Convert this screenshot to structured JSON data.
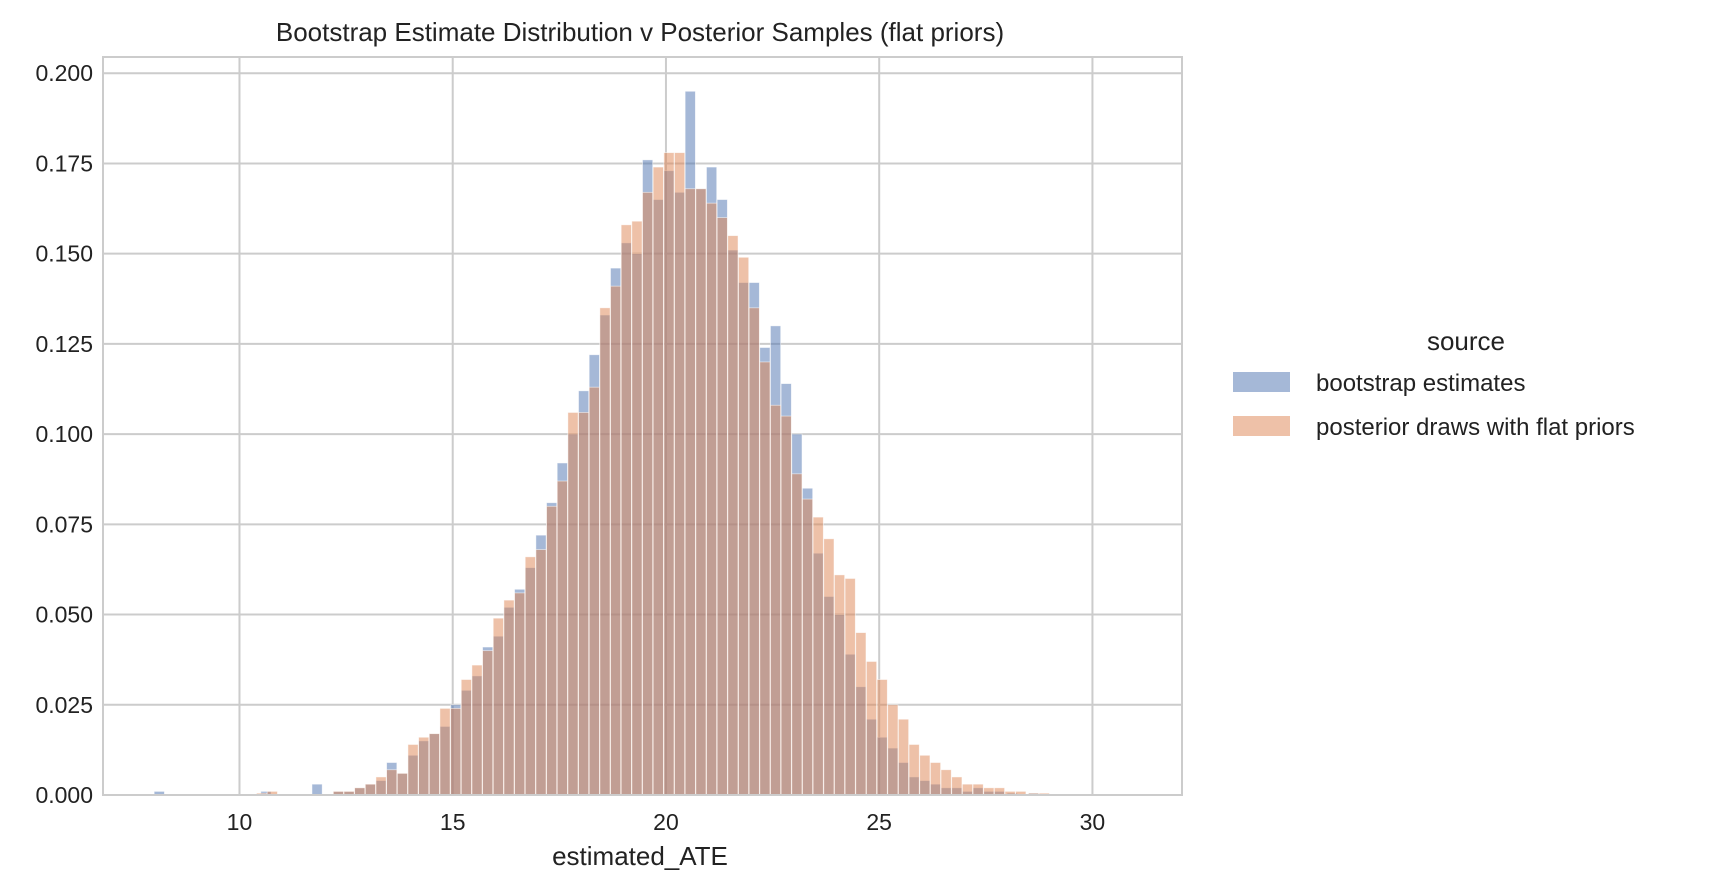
{
  "chart_data": {
    "type": "histogram",
    "title": "Bootstrap Estimate Distribution v Posterior Samples (flat priors)",
    "xlabel": "estimated_ATE",
    "ylabel": "",
    "xlim": [
      6.8,
      32.1
    ],
    "ylim": [
      0,
      0.2045
    ],
    "xticks": [
      10,
      15,
      20,
      25,
      30
    ],
    "xtick_labels": [
      "10",
      "15",
      "20",
      "25",
      "30"
    ],
    "yticks": [
      0,
      0.025,
      0.05,
      0.075,
      0.1,
      0.125,
      0.15,
      0.175,
      0.2
    ],
    "ytick_labels": [
      "0.000",
      "0.025",
      "0.050",
      "0.075",
      "0.100",
      "0.125",
      "0.150",
      "0.175",
      "0.200"
    ],
    "grid": true,
    "legend": {
      "title": "source",
      "placement": "outside-right"
    },
    "bin_width": 0.24,
    "series": [
      {
        "name": "bootstrap estimates",
        "color": "#4c72b0",
        "opacity": 0.5,
        "bins": [
          [
            8.0,
            0.001
          ],
          [
            10.5,
            0.001
          ],
          [
            11.7,
            0.003
          ],
          [
            12.2,
            0.001
          ],
          [
            12.45,
            0.001
          ],
          [
            12.7,
            0.002
          ],
          [
            12.95,
            0.003
          ],
          [
            13.2,
            0.004
          ],
          [
            13.45,
            0.009
          ],
          [
            13.7,
            0.006
          ],
          [
            13.95,
            0.011
          ],
          [
            14.2,
            0.015
          ],
          [
            14.45,
            0.017
          ],
          [
            14.7,
            0.019
          ],
          [
            14.95,
            0.025
          ],
          [
            15.2,
            0.029
          ],
          [
            15.45,
            0.033
          ],
          [
            15.7,
            0.041
          ],
          [
            15.95,
            0.044
          ],
          [
            16.2,
            0.052
          ],
          [
            16.45,
            0.057
          ],
          [
            16.7,
            0.063
          ],
          [
            16.95,
            0.072
          ],
          [
            17.2,
            0.081
          ],
          [
            17.45,
            0.092
          ],
          [
            17.7,
            0.1
          ],
          [
            17.95,
            0.112
          ],
          [
            18.2,
            0.122
          ],
          [
            18.45,
            0.133
          ],
          [
            18.7,
            0.146
          ],
          [
            18.95,
            0.153
          ],
          [
            19.2,
            0.15
          ],
          [
            19.45,
            0.176
          ],
          [
            19.7,
            0.165
          ],
          [
            19.95,
            0.173
          ],
          [
            20.2,
            0.167
          ],
          [
            20.45,
            0.195
          ],
          [
            20.7,
            0.168
          ],
          [
            20.95,
            0.174
          ],
          [
            21.2,
            0.165
          ],
          [
            21.45,
            0.151
          ],
          [
            21.7,
            0.142
          ],
          [
            21.95,
            0.142
          ],
          [
            22.2,
            0.124
          ],
          [
            22.45,
            0.13
          ],
          [
            22.7,
            0.114
          ],
          [
            22.95,
            0.1
          ],
          [
            23.2,
            0.085
          ],
          [
            23.45,
            0.067
          ],
          [
            23.7,
            0.055
          ],
          [
            23.95,
            0.05
          ],
          [
            24.2,
            0.039
          ],
          [
            24.45,
            0.03
          ],
          [
            24.7,
            0.021
          ],
          [
            24.95,
            0.016
          ],
          [
            25.2,
            0.013
          ],
          [
            25.45,
            0.009
          ],
          [
            25.7,
            0.005
          ],
          [
            25.95,
            0.004
          ],
          [
            26.2,
            0.003
          ],
          [
            26.45,
            0.002
          ],
          [
            26.7,
            0.002
          ],
          [
            26.95,
            0.001
          ],
          [
            27.2,
            0.002
          ],
          [
            27.45,
            0.001
          ],
          [
            27.7,
            0.001
          ],
          [
            28.0,
            0.0005
          ],
          [
            28.5,
            0.0005
          ]
        ]
      },
      {
        "name": "posterior draws with flat priors",
        "color": "#dd8452",
        "opacity": 0.5,
        "bins": [
          [
            10.4,
            0.0005
          ],
          [
            10.65,
            0.001
          ],
          [
            12.2,
            0.001
          ],
          [
            12.45,
            0.001
          ],
          [
            12.7,
            0.002
          ],
          [
            12.95,
            0.003
          ],
          [
            13.2,
            0.005
          ],
          [
            13.45,
            0.007
          ],
          [
            13.7,
            0.006
          ],
          [
            13.95,
            0.014
          ],
          [
            14.2,
            0.016
          ],
          [
            14.45,
            0.017
          ],
          [
            14.7,
            0.024
          ],
          [
            14.95,
            0.024
          ],
          [
            15.2,
            0.032
          ],
          [
            15.45,
            0.036
          ],
          [
            15.7,
            0.04
          ],
          [
            15.95,
            0.049
          ],
          [
            16.2,
            0.054
          ],
          [
            16.45,
            0.056
          ],
          [
            16.7,
            0.066
          ],
          [
            16.95,
            0.068
          ],
          [
            17.2,
            0.08
          ],
          [
            17.45,
            0.087
          ],
          [
            17.7,
            0.106
          ],
          [
            17.95,
            0.106
          ],
          [
            18.2,
            0.113
          ],
          [
            18.45,
            0.135
          ],
          [
            18.7,
            0.141
          ],
          [
            18.95,
            0.158
          ],
          [
            19.2,
            0.159
          ],
          [
            19.45,
            0.167
          ],
          [
            19.7,
            0.174
          ],
          [
            19.95,
            0.178
          ],
          [
            20.2,
            0.178
          ],
          [
            20.45,
            0.168
          ],
          [
            20.7,
            0.168
          ],
          [
            20.95,
            0.164
          ],
          [
            21.2,
            0.16
          ],
          [
            21.45,
            0.155
          ],
          [
            21.7,
            0.149
          ],
          [
            21.95,
            0.135
          ],
          [
            22.2,
            0.12
          ],
          [
            22.45,
            0.108
          ],
          [
            22.7,
            0.105
          ],
          [
            22.95,
            0.089
          ],
          [
            23.2,
            0.082
          ],
          [
            23.45,
            0.077
          ],
          [
            23.7,
            0.071
          ],
          [
            23.95,
            0.061
          ],
          [
            24.2,
            0.06
          ],
          [
            24.45,
            0.045
          ],
          [
            24.7,
            0.037
          ],
          [
            24.95,
            0.032
          ],
          [
            25.2,
            0.025
          ],
          [
            25.45,
            0.021
          ],
          [
            25.7,
            0.014
          ],
          [
            25.95,
            0.011
          ],
          [
            26.2,
            0.009
          ],
          [
            26.45,
            0.007
          ],
          [
            26.7,
            0.005
          ],
          [
            26.95,
            0.003
          ],
          [
            27.2,
            0.003
          ],
          [
            27.45,
            0.002
          ],
          [
            27.7,
            0.002
          ],
          [
            27.95,
            0.001
          ],
          [
            28.2,
            0.001
          ],
          [
            28.5,
            0.0005
          ],
          [
            28.75,
            0.0005
          ]
        ]
      }
    ]
  }
}
